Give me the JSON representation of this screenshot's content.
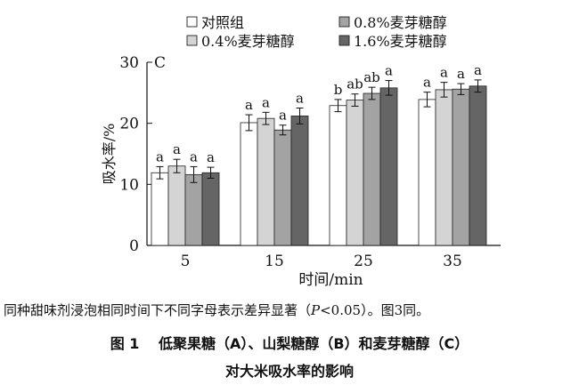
{
  "chart_data": {
    "type": "bar",
    "panel_label": "C",
    "xlabel": "时间/min",
    "ylabel": "吸水率/%",
    "ylim": [
      0,
      30
    ],
    "yticks": [
      0,
      10,
      20,
      30
    ],
    "categories": [
      "5",
      "15",
      "25",
      "35"
    ],
    "series": [
      {
        "name": "对照组",
        "color": "#ffffff",
        "values": [
          11.9,
          20.1,
          22.9,
          23.9
        ],
        "errors": [
          1.0,
          1.3,
          1.0,
          1.2
        ],
        "letters": [
          "a",
          "a",
          "b",
          "a"
        ]
      },
      {
        "name": "0.4%麦芽糖醇",
        "color": "#d4d4d4",
        "values": [
          13.0,
          20.8,
          23.8,
          25.5
        ],
        "errors": [
          1.1,
          1.0,
          1.0,
          1.2
        ],
        "letters": [
          "a",
          "a",
          "ab",
          "a"
        ]
      },
      {
        "name": "0.8%麦芽糖醇",
        "color": "#a3a3a3",
        "values": [
          11.6,
          18.9,
          24.9,
          25.6
        ],
        "errors": [
          1.3,
          0.8,
          1.0,
          0.9
        ],
        "letters": [
          "a",
          "a",
          "ab",
          "a"
        ]
      },
      {
        "name": "1.6%麦芽糖醇",
        "color": "#656565",
        "values": [
          11.9,
          21.2,
          25.8,
          26.1
        ],
        "errors": [
          0.9,
          1.3,
          1.2,
          1.0
        ],
        "letters": [
          "a",
          "a",
          "a",
          "a"
        ]
      }
    ]
  },
  "note": {
    "prefix": "同种甜味剂浸泡相同时间下不同字母表示差异显著（",
    "p_symbol": "P",
    "suffix": "<0.05）。图3同。"
  },
  "caption": {
    "line1": "图 1　 低聚果糖（A）、山梨糖醇（B）和麦芽糖醇（C）",
    "line2": "对大米吸水率的影响"
  }
}
